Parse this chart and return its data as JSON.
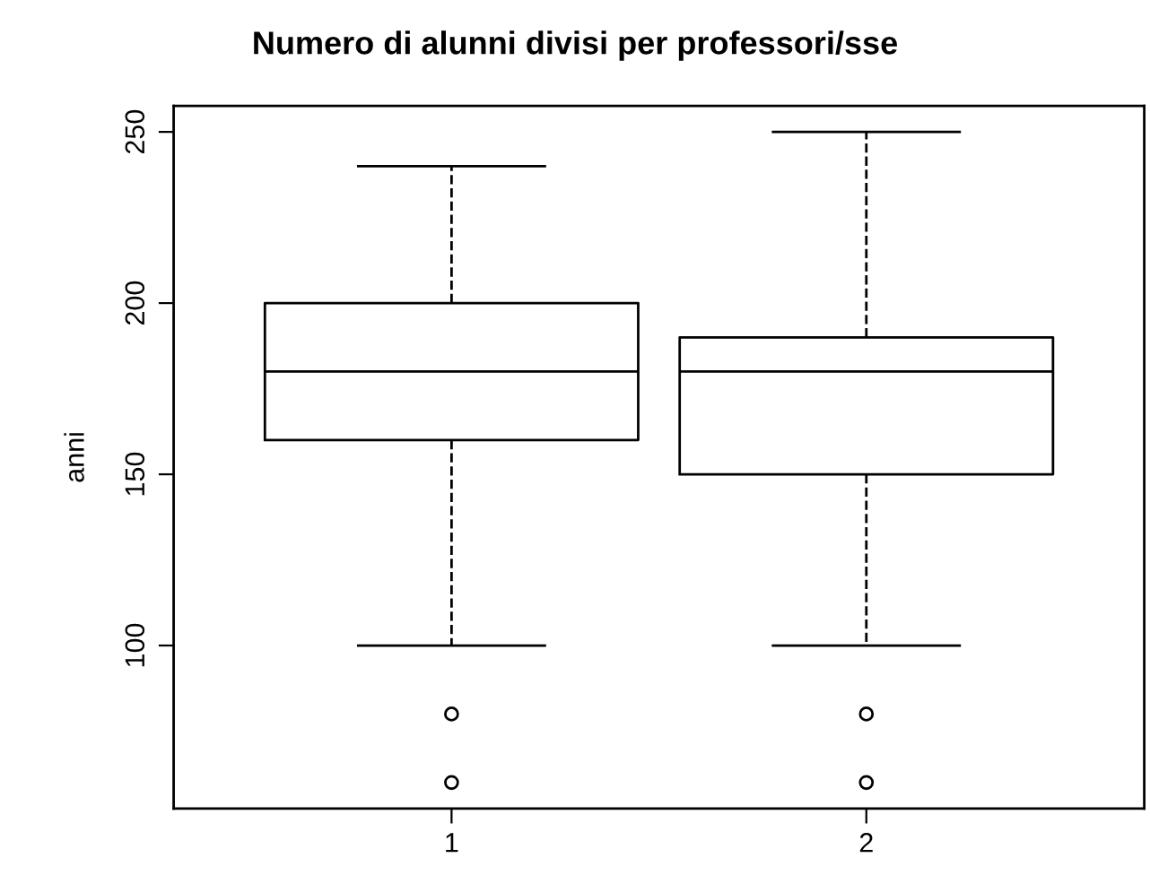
{
  "chart_data": {
    "type": "box",
    "title": "Numero di alunni divisi per professori/sse",
    "ylabel": "anni",
    "categories": [
      "1",
      "2"
    ],
    "boxes": [
      {
        "low": 100,
        "q1": 160,
        "median": 180,
        "q3": 200,
        "high": 240,
        "outliers": [
          80,
          60
        ]
      },
      {
        "low": 100,
        "q1": 150,
        "median": 180,
        "q3": 190,
        "high": 250,
        "outliers": [
          80,
          60
        ]
      }
    ],
    "ylim": [
      52.4,
      257.6
    ],
    "yticks": [
      100,
      150,
      200,
      250
    ],
    "grid": false,
    "line_style": "dashed"
  }
}
